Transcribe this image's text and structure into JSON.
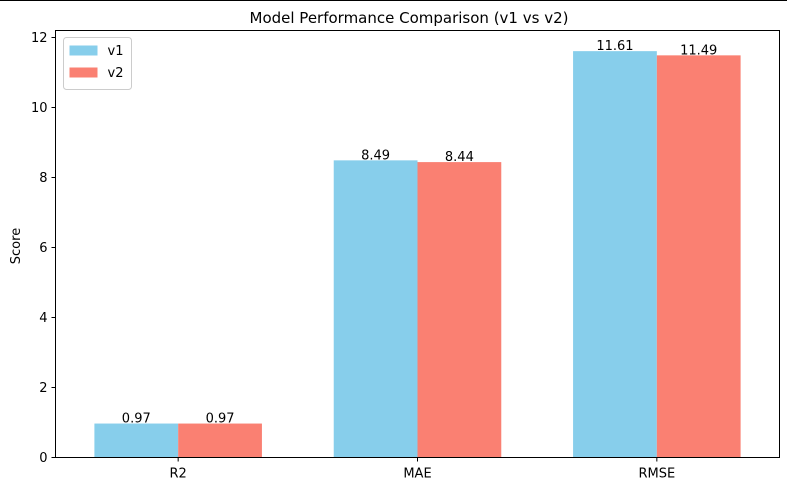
{
  "chart_data": {
    "type": "bar",
    "title": "Model Performance Comparison (v1 vs v2)",
    "xlabel": "",
    "ylabel": "Score",
    "categories": [
      "R2",
      "MAE",
      "RMSE"
    ],
    "series": [
      {
        "name": "v1",
        "color": "#87ceeb",
        "values": [
          0.97,
          8.49,
          11.61
        ],
        "labels": [
          "0.97",
          "8.49",
          "11.61"
        ]
      },
      {
        "name": "v2",
        "color": "#fa8072",
        "values": [
          0.97,
          8.44,
          11.49
        ],
        "labels": [
          "0.97",
          "8.44",
          "11.49"
        ]
      }
    ],
    "ylim": [
      0,
      12.2
    ],
    "yticks": [
      0,
      2,
      4,
      6,
      8,
      10,
      12
    ],
    "grid": false,
    "legend_position": "top-left"
  }
}
